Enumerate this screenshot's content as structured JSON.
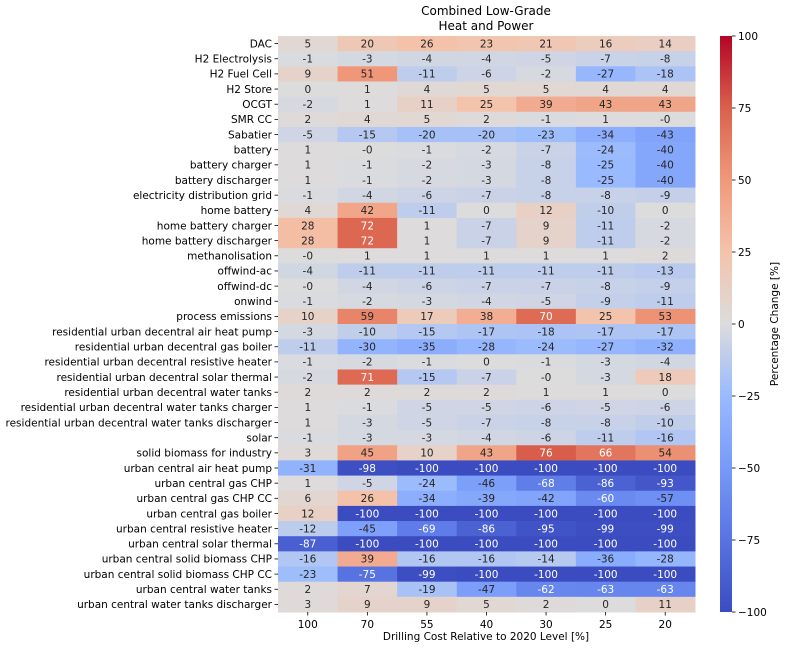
{
  "chart_data": {
    "type": "heatmap",
    "title": [
      "Combined Low-Grade",
      "Heat and Power"
    ],
    "xlabel": "Drilling Cost Relative to 2020 Level [%]",
    "ylabel": "",
    "colormap": "coolwarm",
    "vmin": -100,
    "vmax": 100,
    "colorbar": {
      "label": "Percentage Change [%]",
      "ticks": [
        100,
        75,
        50,
        25,
        0,
        -25,
        -50,
        -75,
        -100
      ],
      "tick_labels": [
        "100",
        "75",
        "50",
        "25",
        "0",
        "−25",
        "−50",
        "−75",
        "−100"
      ],
      "placement": "right"
    },
    "x": [
      "100",
      "70",
      "55",
      "40",
      "30",
      "25",
      "20"
    ],
    "y": [
      "DAC",
      "H2 Electrolysis",
      "H2 Fuel Cell",
      "H2 Store",
      "OCGT",
      "SMR CC",
      "Sabatier",
      "battery",
      "battery charger",
      "battery discharger",
      "electricity distribution grid",
      "home battery",
      "home battery charger",
      "home battery discharger",
      "methanolisation",
      "offwind-ac",
      "offwind-dc",
      "onwind",
      "process emissions",
      "residential urban decentral air heat pump",
      "residential urban decentral gas boiler",
      "residential urban decentral resistive heater",
      "residential urban decentral solar thermal",
      "residential urban decentral water tanks",
      "residential urban decentral water tanks charger",
      "residential urban decentral water tanks discharger",
      "solar",
      "solid biomass for industry",
      "urban central air heat pump",
      "urban central gas CHP",
      "urban central gas CHP CC",
      "urban central gas boiler",
      "urban central resistive heater",
      "urban central solar thermal",
      "urban central solid biomass CHP",
      "urban central solid biomass CHP CC",
      "urban central water tanks",
      "urban central water tanks discharger"
    ],
    "values": [
      [
        5,
        20,
        26,
        23,
        21,
        16,
        14
      ],
      [
        -1,
        -3,
        -4,
        -4,
        -5,
        -7,
        -8
      ],
      [
        9,
        51,
        -11,
        -6,
        -2,
        -27,
        -18
      ],
      [
        0,
        1,
        4,
        5,
        5,
        4,
        4
      ],
      [
        -2,
        1,
        11,
        25,
        39,
        43,
        43
      ],
      [
        2,
        4,
        5,
        2,
        -1,
        1,
        0
      ],
      [
        -5,
        -15,
        -20,
        -20,
        -23,
        -34,
        -43
      ],
      [
        1,
        0,
        -1,
        -2,
        -7,
        -24,
        -40
      ],
      [
        1,
        -1,
        -2,
        -3,
        -8,
        -25,
        -40
      ],
      [
        1,
        -1,
        -2,
        -3,
        -8,
        -25,
        -40
      ],
      [
        -1,
        -4,
        -6,
        -7,
        -8,
        -8,
        -9
      ],
      [
        4,
        42,
        -11,
        0,
        12,
        -10,
        0
      ],
      [
        28,
        72,
        1,
        -7,
        9,
        -11,
        -2
      ],
      [
        28,
        72,
        1,
        -7,
        9,
        -11,
        -2
      ],
      [
        0,
        1,
        1,
        1,
        1,
        1,
        2
      ],
      [
        -4,
        -11,
        -11,
        -11,
        -11,
        -11,
        -13
      ],
      [
        0,
        -4,
        -6,
        -7,
        -7,
        -8,
        -9
      ],
      [
        -1,
        -2,
        -3,
        -4,
        -5,
        -9,
        -11
      ],
      [
        10,
        59,
        17,
        38,
        70,
        25,
        53
      ],
      [
        -3,
        -10,
        -15,
        -17,
        -18,
        -17,
        -17
      ],
      [
        -11,
        -30,
        -35,
        -28,
        -24,
        -27,
        -32
      ],
      [
        -1,
        -2,
        -1,
        0,
        -1,
        -3,
        -4
      ],
      [
        -2,
        71,
        -15,
        -7,
        0,
        -3,
        18
      ],
      [
        2,
        2,
        2,
        2,
        1,
        1,
        0
      ],
      [
        1,
        -1,
        -5,
        -5,
        -6,
        -5,
        -6
      ],
      [
        1,
        -3,
        -5,
        -7,
        -8,
        -8,
        -10
      ],
      [
        -1,
        -3,
        -3,
        -4,
        -6,
        -11,
        -16
      ],
      [
        3,
        45,
        10,
        43,
        76,
        66,
        54
      ],
      [
        -31,
        -98,
        -100,
        -100,
        -100,
        -100,
        -100
      ],
      [
        1,
        -5,
        -24,
        -46,
        -68,
        -86,
        -93
      ],
      [
        6,
        26,
        -34,
        -39,
        -42,
        -60,
        -57
      ],
      [
        12,
        -100,
        -100,
        -100,
        -100,
        -100,
        -100
      ],
      [
        -12,
        -45,
        -69,
        -86,
        -95,
        -99,
        -99
      ],
      [
        -87,
        -100,
        -100,
        -100,
        -100,
        -100,
        -100
      ],
      [
        -16,
        39,
        -16,
        -16,
        -14,
        -36,
        -28
      ],
      [
        -23,
        -75,
        -99,
        -100,
        -100,
        -100,
        -100
      ],
      [
        2,
        7,
        -19,
        -47,
        -62,
        -63,
        -63
      ],
      [
        3,
        9,
        9,
        5,
        2,
        0,
        11
      ]
    ],
    "cell_labels": [
      [
        "5",
        "20",
        "26",
        "23",
        "21",
        "16",
        "14"
      ],
      [
        "-1",
        "-3",
        "-4",
        "-4",
        "-5",
        "-7",
        "-8"
      ],
      [
        "9",
        "51",
        "-11",
        "-6",
        "-2",
        "-27",
        "-18"
      ],
      [
        "0",
        "1",
        "4",
        "5",
        "5",
        "4",
        "4"
      ],
      [
        "-2",
        "1",
        "11",
        "25",
        "39",
        "43",
        "43"
      ],
      [
        "2",
        "4",
        "5",
        "2",
        "-1",
        "1",
        "-0"
      ],
      [
        "-5",
        "-15",
        "-20",
        "-20",
        "-23",
        "-34",
        "-43"
      ],
      [
        "1",
        "-0",
        "-1",
        "-2",
        "-7",
        "-24",
        "-40"
      ],
      [
        "1",
        "-1",
        "-2",
        "-3",
        "-8",
        "-25",
        "-40"
      ],
      [
        "1",
        "-1",
        "-2",
        "-3",
        "-8",
        "-25",
        "-40"
      ],
      [
        "-1",
        "-4",
        "-6",
        "-7",
        "-8",
        "-8",
        "-9"
      ],
      [
        "4",
        "42",
        "-11",
        "0",
        "12",
        "-10",
        "0"
      ],
      [
        "28",
        "72",
        "1",
        "-7",
        "9",
        "-11",
        "-2"
      ],
      [
        "28",
        "72",
        "1",
        "-7",
        "9",
        "-11",
        "-2"
      ],
      [
        "-0",
        "1",
        "1",
        "1",
        "1",
        "1",
        "2"
      ],
      [
        "-4",
        "-11",
        "-11",
        "-11",
        "-11",
        "-11",
        "-13"
      ],
      [
        "-0",
        "-4",
        "-6",
        "-7",
        "-7",
        "-8",
        "-9"
      ],
      [
        "-1",
        "-2",
        "-3",
        "-4",
        "-5",
        "-9",
        "-11"
      ],
      [
        "10",
        "59",
        "17",
        "38",
        "70",
        "25",
        "53"
      ],
      [
        "-3",
        "-10",
        "-15",
        "-17",
        "-18",
        "-17",
        "-17"
      ],
      [
        "-11",
        "-30",
        "-35",
        "-28",
        "-24",
        "-27",
        "-32"
      ],
      [
        "-1",
        "-2",
        "-1",
        "0",
        "-1",
        "-3",
        "-4"
      ],
      [
        "-2",
        "71",
        "-15",
        "-7",
        "-0",
        "-3",
        "18"
      ],
      [
        "2",
        "2",
        "2",
        "2",
        "1",
        "1",
        "0"
      ],
      [
        "1",
        "-1",
        "-5",
        "-5",
        "-6",
        "-5",
        "-6"
      ],
      [
        "1",
        "-3",
        "-5",
        "-7",
        "-8",
        "-8",
        "-10"
      ],
      [
        "-1",
        "-3",
        "-3",
        "-4",
        "-6",
        "-11",
        "-16"
      ],
      [
        "3",
        "45",
        "10",
        "43",
        "76",
        "66",
        "54"
      ],
      [
        "-31",
        "-98",
        "-100",
        "-100",
        "-100",
        "-100",
        "-100"
      ],
      [
        "1",
        "-5",
        "-24",
        "-46",
        "-68",
        "-86",
        "-93"
      ],
      [
        "6",
        "26",
        "-34",
        "-39",
        "-42",
        "-60",
        "-57"
      ],
      [
        "12",
        "-100",
        "-100",
        "-100",
        "-100",
        "-100",
        "-100"
      ],
      [
        "-12",
        "-45",
        "-69",
        "-86",
        "-95",
        "-99",
        "-99"
      ],
      [
        "-87",
        "-100",
        "-100",
        "-100",
        "-100",
        "-100",
        "-100"
      ],
      [
        "-16",
        "39",
        "-16",
        "-16",
        "-14",
        "-36",
        "-28"
      ],
      [
        "-23",
        "-75",
        "-99",
        "-100",
        "-100",
        "-100",
        "-100"
      ],
      [
        "2",
        "7",
        "-19",
        "-47",
        "-62",
        "-63",
        "-63"
      ],
      [
        "3",
        "9",
        "9",
        "5",
        "2",
        "0",
        "11"
      ]
    ]
  }
}
